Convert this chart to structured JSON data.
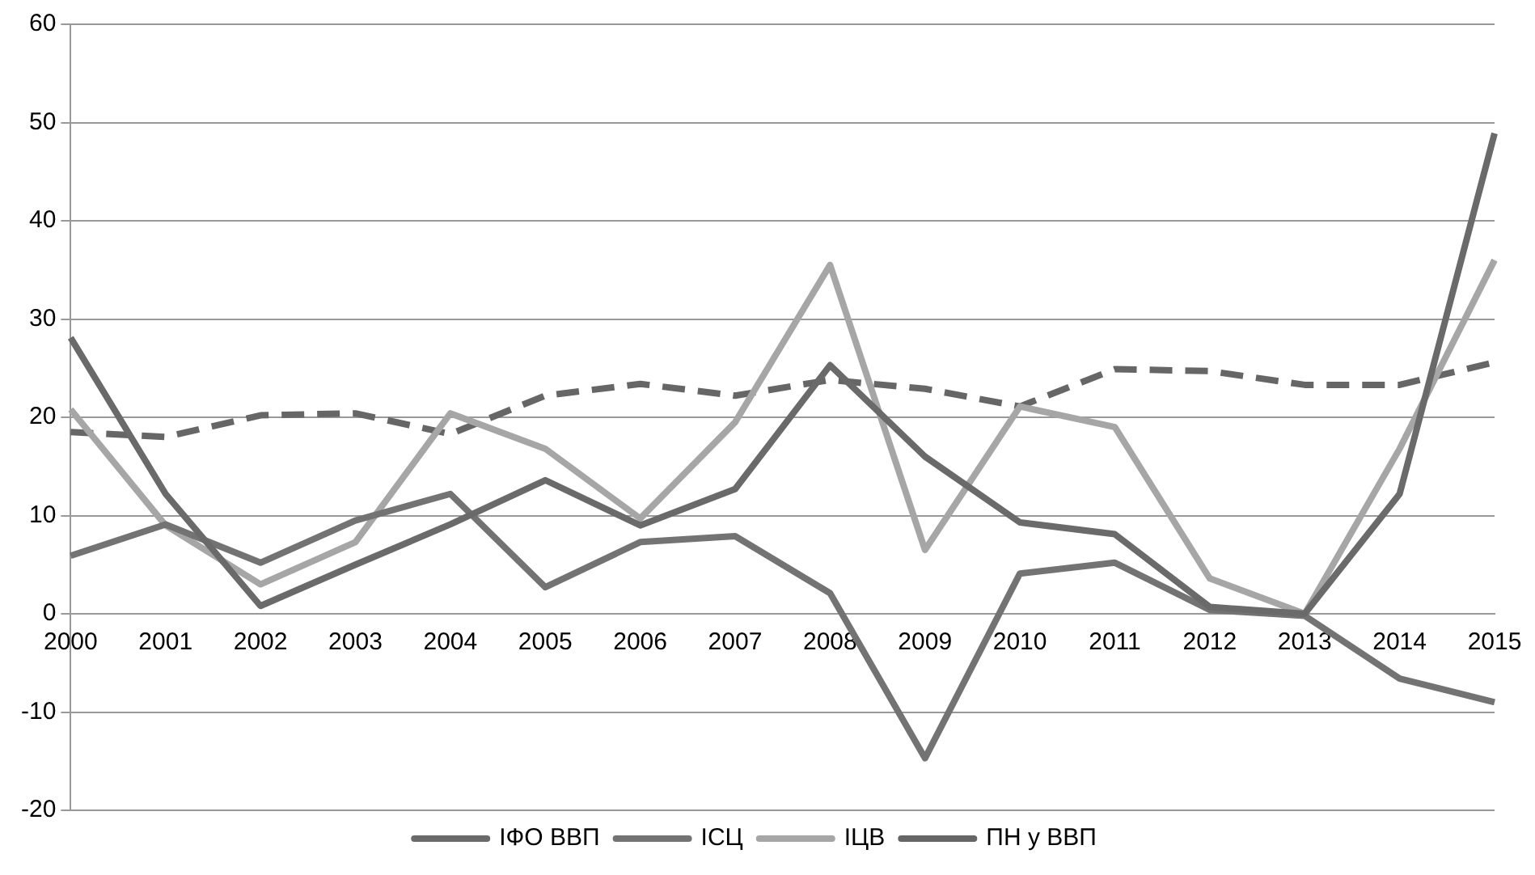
{
  "chart_data": {
    "type": "line",
    "categories": [
      "2000",
      "2001",
      "2002",
      "2003",
      "2004",
      "2005",
      "2006",
      "2007",
      "2008",
      "2009",
      "2010",
      "2011",
      "2012",
      "2013",
      "2014",
      "2015"
    ],
    "series": [
      {
        "name": "ІФО ВВП",
        "color": "#6a6a6a",
        "values": [
          28.1,
          12.2,
          0.8,
          5.0,
          9.1,
          13.6,
          9.0,
          12.7,
          25.3,
          16.0,
          9.3,
          8.1,
          0.7,
          0,
          12.2,
          48.9
        ]
      },
      {
        "name": "ІСЦ",
        "color": "#737373",
        "values": [
          5.9,
          9.1,
          5.2,
          9.5,
          12.2,
          2.7,
          7.3,
          7.9,
          2.1,
          -14.7,
          4.1,
          5.2,
          0.4,
          -0.2,
          -6.6,
          -9.0
        ]
      },
      {
        "name": "ІЦВ",
        "color": "#a6a6a6",
        "values": [
          20.8,
          9.0,
          3.0,
          7.3,
          20.4,
          16.8,
          9.7,
          19.5,
          35.5,
          6.5,
          21.1,
          19.0,
          3.6,
          0,
          16.8,
          36.0
        ]
      },
      {
        "name": "ПН у ВВП",
        "color": "#666666",
        "line_style": "dashed",
        "values": [
          18.5,
          18.0,
          20.2,
          20.4,
          18.3,
          22.2,
          23.4,
          22.2,
          23.8,
          22.9,
          21.1,
          24.9,
          24.7,
          23.3,
          23.3,
          25.6
        ]
      }
    ],
    "ylim": [
      -20,
      60
    ],
    "yticks": [
      -20,
      -10,
      0,
      10,
      20,
      30,
      40,
      50,
      60
    ],
    "grid": "y",
    "legend": "bottom",
    "marker": "none"
  }
}
